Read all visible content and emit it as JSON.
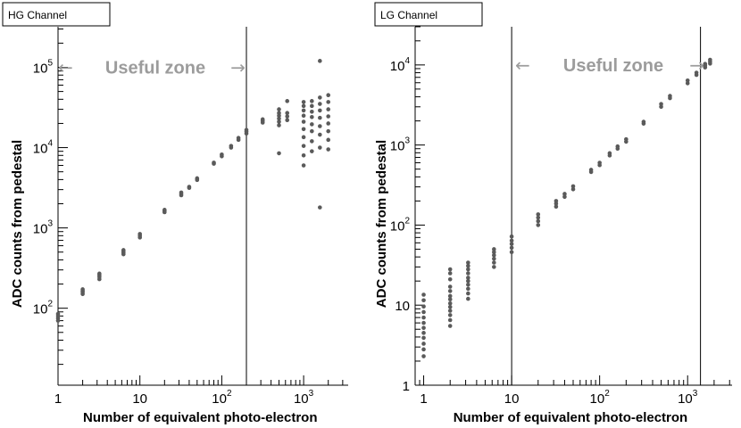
{
  "colors": {
    "points": "#5a5a5a",
    "zone_text": "#9c9c9c",
    "lines": "#000000"
  },
  "zone_label": "Useful zone",
  "chart_data": [
    {
      "type": "scatter",
      "title": "HG Channel",
      "xlabel": "Number of equivalent photo-electron",
      "ylabel": "ADC counts from pedestal",
      "xscale": "log",
      "yscale": "log",
      "xlim": [
        1,
        3500
      ],
      "ylim": [
        11,
        320000
      ],
      "xticks": [
        1,
        10,
        100,
        1000
      ],
      "xtick_labels": [
        "1",
        "10",
        "10^2",
        "10^3"
      ],
      "yticks": [
        100,
        1000,
        10000,
        100000
      ],
      "ytick_labels": [
        "10^2",
        "10^3",
        "10^4",
        "10^5"
      ],
      "useful_zone": {
        "x_from": 1,
        "x_to": 200,
        "label_y": 100000
      },
      "series": [
        {
          "points": [
            [
              1,
              70
            ],
            [
              1,
              75
            ],
            [
              1,
              80
            ],
            [
              1,
              85
            ],
            [
              2,
              150
            ],
            [
              2,
              158
            ],
            [
              2,
              165
            ],
            [
              2,
              172
            ],
            [
              3.2,
              230
            ],
            [
              3.2,
              245
            ],
            [
              3.2,
              258
            ],
            [
              3.2,
              270
            ],
            [
              6.3,
              470
            ],
            [
              6.3,
              490
            ],
            [
              6.3,
              510
            ],
            [
              6.3,
              530
            ],
            [
              10,
              760
            ],
            [
              10,
              800
            ],
            [
              10,
              840
            ],
            [
              20,
              1570
            ],
            [
              20,
              1620
            ],
            [
              20,
              1680
            ],
            [
              32,
              2550
            ],
            [
              32,
              2650
            ],
            [
              32,
              2760
            ],
            [
              40,
              3150
            ],
            [
              40,
              3250
            ],
            [
              50,
              3950
            ],
            [
              50,
              4050
            ],
            [
              50,
              4150
            ],
            [
              80,
              6300
            ],
            [
              80,
              6500
            ],
            [
              100,
              7800
            ],
            [
              100,
              8200
            ],
            [
              130,
              10000
            ],
            [
              130,
              10500
            ],
            [
              160,
              12500
            ],
            [
              160,
              13200
            ],
            [
              200,
              15000
            ],
            [
              200,
              15800
            ],
            [
              200,
              16600
            ],
            [
              316,
              20500
            ],
            [
              316,
              21500
            ],
            [
              316,
              22500
            ],
            [
              500,
              8500
            ],
            [
              500,
              19000
            ],
            [
              500,
              21000
            ],
            [
              500,
              23000
            ],
            [
              500,
              25000
            ],
            [
              500,
              27000
            ],
            [
              500,
              30000
            ],
            [
              630,
              22000
            ],
            [
              630,
              24500
            ],
            [
              630,
              27000
            ],
            [
              630,
              38000
            ],
            [
              1000,
              6000
            ],
            [
              1000,
              8000
            ],
            [
              1000,
              10500
            ],
            [
              1000,
              13500
            ],
            [
              1000,
              17000
            ],
            [
              1000,
              21000
            ],
            [
              1000,
              25000
            ],
            [
              1000,
              29000
            ],
            [
              1000,
              33000
            ],
            [
              1000,
              37000
            ],
            [
              1260,
              9000
            ],
            [
              1260,
              12000
            ],
            [
              1260,
              16000
            ],
            [
              1260,
              19500
            ],
            [
              1260,
              24000
            ],
            [
              1260,
              28000
            ],
            [
              1260,
              33000
            ],
            [
              1260,
              38000
            ],
            [
              1580,
              1800
            ],
            [
              1580,
              10000
            ],
            [
              1580,
              14500
            ],
            [
              1580,
              18500
            ],
            [
              1580,
              23500
            ],
            [
              1580,
              29000
            ],
            [
              1580,
              35000
            ],
            [
              1580,
              42000
            ],
            [
              1580,
              120000
            ],
            [
              2000,
              9500
            ],
            [
              2000,
              12500
            ],
            [
              2000,
              16000
            ],
            [
              2000,
              20000
            ],
            [
              2000,
              24500
            ],
            [
              2000,
              30000
            ],
            [
              2000,
              37000
            ],
            [
              2000,
              45000
            ]
          ]
        }
      ]
    },
    {
      "type": "scatter",
      "title": "LG Channel",
      "xlabel": "Number of equivalent photo-electron",
      "ylabel": "ADC counts from pedestal",
      "xscale": "log",
      "yscale": "log",
      "xlim": [
        0.8,
        3200
      ],
      "ylim": [
        1,
        30000
      ],
      "xticks": [
        1,
        10,
        100,
        1000
      ],
      "xtick_labels": [
        "1",
        "10",
        "10^2",
        "10^3"
      ],
      "yticks": [
        1,
        10,
        100,
        1000,
        10000
      ],
      "ytick_labels": [
        "1",
        "10",
        "10^2",
        "10^3",
        "10^4"
      ],
      "useful_zone": {
        "x_from": 10,
        "x_to": 1400,
        "label_y": 10000
      },
      "series": [
        {
          "points": [
            [
              1,
              2.3
            ],
            [
              1,
              2.8
            ],
            [
              1,
              3.3
            ],
            [
              1,
              3.9
            ],
            [
              1,
              4.5
            ],
            [
              1,
              5.2
            ],
            [
              1,
              6
            ],
            [
              1,
              7
            ],
            [
              1,
              8.2
            ],
            [
              1,
              9.6
            ],
            [
              1,
              11.5
            ],
            [
              1,
              13.5
            ],
            [
              2,
              5.5
            ],
            [
              2,
              6.5
            ],
            [
              2,
              7.5
            ],
            [
              2,
              8.5
            ],
            [
              2,
              9.5
            ],
            [
              2,
              10.5
            ],
            [
              2,
              11.8
            ],
            [
              2,
              13
            ],
            [
              2,
              15
            ],
            [
              2,
              17
            ],
            [
              2,
              21
            ],
            [
              2,
              25
            ],
            [
              2,
              28
            ],
            [
              3.2,
              12
            ],
            [
              3.2,
              14
            ],
            [
              3.2,
              16
            ],
            [
              3.2,
              18
            ],
            [
              3.2,
              20
            ],
            [
              3.2,
              22
            ],
            [
              3.2,
              25
            ],
            [
              3.2,
              28
            ],
            [
              3.2,
              31
            ],
            [
              3.2,
              34
            ],
            [
              6.3,
              30
            ],
            [
              6.3,
              34
            ],
            [
              6.3,
              38
            ],
            [
              6.3,
              42
            ],
            [
              6.3,
              46
            ],
            [
              6.3,
              50
            ],
            [
              10,
              46
            ],
            [
              10,
              52
            ],
            [
              10,
              58
            ],
            [
              10,
              64
            ],
            [
              10,
              72
            ],
            [
              20,
              100
            ],
            [
              20,
              112
            ],
            [
              20,
              124
            ],
            [
              20,
              136
            ],
            [
              32,
              170
            ],
            [
              32,
              185
            ],
            [
              32,
              200
            ],
            [
              40,
              225
            ],
            [
              40,
              245
            ],
            [
              50,
              280
            ],
            [
              50,
              305
            ],
            [
              80,
              460
            ],
            [
              80,
              490
            ],
            [
              100,
              560
            ],
            [
              100,
              600
            ],
            [
              130,
              740
            ],
            [
              130,
              790
            ],
            [
              160,
              900
            ],
            [
              160,
              960
            ],
            [
              200,
              1100
            ],
            [
              200,
              1180
            ],
            [
              316,
              1850
            ],
            [
              316,
              1950
            ],
            [
              500,
              3000
            ],
            [
              500,
              3250
            ],
            [
              630,
              3850
            ],
            [
              630,
              4100
            ],
            [
              1000,
              5900
            ],
            [
              1000,
              6400
            ],
            [
              1260,
              7500
            ],
            [
              1260,
              8000
            ],
            [
              1580,
              9300
            ],
            [
              1580,
              9800
            ],
            [
              1580,
              10300
            ],
            [
              1800,
              10400
            ],
            [
              1800,
              11000
            ],
            [
              1800,
              11600
            ]
          ]
        }
      ]
    }
  ]
}
